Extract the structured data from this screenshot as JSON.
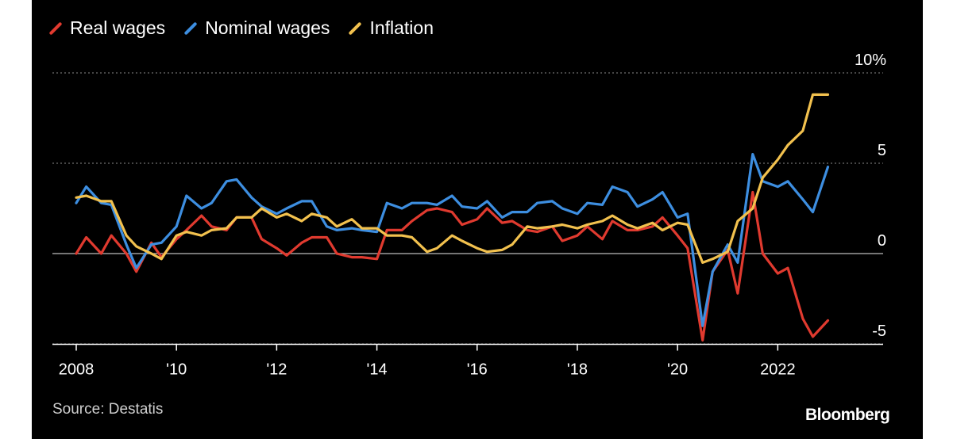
{
  "chart_data": {
    "type": "line",
    "title": "",
    "xlabel": "",
    "ylabel": "",
    "ylim": [
      -5,
      10
    ],
    "xlim": [
      2008,
      2023.5
    ],
    "grid": true,
    "legend_position": "top-left",
    "x_ticks": [
      {
        "value": 2008,
        "label": "2008"
      },
      {
        "value": 2010,
        "label": "'10"
      },
      {
        "value": 2012,
        "label": "'12"
      },
      {
        "value": 2014,
        "label": "'14"
      },
      {
        "value": 2016,
        "label": "'16"
      },
      {
        "value": 2018,
        "label": "'18"
      },
      {
        "value": 2020,
        "label": "'20"
      },
      {
        "value": 2022,
        "label": "2022"
      }
    ],
    "y_ticks": [
      {
        "value": 10,
        "label": "10%"
      },
      {
        "value": 5,
        "label": "5"
      },
      {
        "value": 0,
        "label": "0"
      },
      {
        "value": -5,
        "label": "-5"
      }
    ],
    "series": [
      {
        "name": "Real wages",
        "color": "#e03a2f",
        "points": [
          [
            2008.0,
            0.0
          ],
          [
            2008.2,
            0.9
          ],
          [
            2008.5,
            0.0
          ],
          [
            2008.7,
            1.0
          ],
          [
            2009.0,
            0.0
          ],
          [
            2009.2,
            -1.0
          ],
          [
            2009.5,
            0.6
          ],
          [
            2009.7,
            -0.2
          ],
          [
            2010.0,
            0.8
          ],
          [
            2010.2,
            1.3
          ],
          [
            2010.5,
            2.1
          ],
          [
            2010.7,
            1.5
          ],
          [
            2011.0,
            1.3
          ],
          [
            2011.2,
            2.0
          ],
          [
            2011.5,
            2.0
          ],
          [
            2011.7,
            0.8
          ],
          [
            2012.0,
            0.3
          ],
          [
            2012.2,
            -0.1
          ],
          [
            2012.5,
            0.6
          ],
          [
            2012.7,
            0.9
          ],
          [
            2013.0,
            0.9
          ],
          [
            2013.2,
            0.0
          ],
          [
            2013.5,
            -0.2
          ],
          [
            2013.7,
            -0.2
          ],
          [
            2014.0,
            -0.3
          ],
          [
            2014.2,
            1.3
          ],
          [
            2014.5,
            1.3
          ],
          [
            2014.7,
            1.8
          ],
          [
            2015.0,
            2.4
          ],
          [
            2015.2,
            2.5
          ],
          [
            2015.5,
            2.3
          ],
          [
            2015.7,
            1.6
          ],
          [
            2016.0,
            1.9
          ],
          [
            2016.2,
            2.5
          ],
          [
            2016.5,
            1.7
          ],
          [
            2016.7,
            1.8
          ],
          [
            2017.0,
            1.3
          ],
          [
            2017.2,
            1.2
          ],
          [
            2017.5,
            1.5
          ],
          [
            2017.7,
            0.7
          ],
          [
            2018.0,
            1.0
          ],
          [
            2018.2,
            1.5
          ],
          [
            2018.5,
            0.8
          ],
          [
            2018.7,
            1.8
          ],
          [
            2019.0,
            1.3
          ],
          [
            2019.2,
            1.3
          ],
          [
            2019.5,
            1.5
          ],
          [
            2019.7,
            2.0
          ],
          [
            2020.0,
            1.0
          ],
          [
            2020.2,
            0.3
          ],
          [
            2020.5,
            -4.8
          ],
          [
            2020.7,
            -1.0
          ],
          [
            2021.0,
            0.2
          ],
          [
            2021.2,
            -2.2
          ],
          [
            2021.5,
            3.4
          ],
          [
            2021.7,
            0.0
          ],
          [
            2022.0,
            -1.1
          ],
          [
            2022.2,
            -0.8
          ],
          [
            2022.5,
            -3.6
          ],
          [
            2022.7,
            -4.6
          ],
          [
            2023.0,
            -3.7
          ]
        ]
      },
      {
        "name": "Nominal wages",
        "color": "#3d8ee0",
        "points": [
          [
            2008.0,
            2.8
          ],
          [
            2008.2,
            3.7
          ],
          [
            2008.5,
            2.8
          ],
          [
            2008.7,
            2.7
          ],
          [
            2009.0,
            0.5
          ],
          [
            2009.2,
            -0.8
          ],
          [
            2009.5,
            0.5
          ],
          [
            2009.7,
            0.6
          ],
          [
            2010.0,
            1.5
          ],
          [
            2010.2,
            3.2
          ],
          [
            2010.5,
            2.5
          ],
          [
            2010.7,
            2.8
          ],
          [
            2011.0,
            4.0
          ],
          [
            2011.2,
            4.1
          ],
          [
            2011.5,
            3.1
          ],
          [
            2011.7,
            2.6
          ],
          [
            2012.0,
            2.2
          ],
          [
            2012.2,
            2.5
          ],
          [
            2012.5,
            2.9
          ],
          [
            2012.7,
            2.9
          ],
          [
            2013.0,
            1.5
          ],
          [
            2013.2,
            1.3
          ],
          [
            2013.5,
            1.4
          ],
          [
            2013.7,
            1.3
          ],
          [
            2014.0,
            1.2
          ],
          [
            2014.2,
            2.8
          ],
          [
            2014.5,
            2.5
          ],
          [
            2014.7,
            2.8
          ],
          [
            2015.0,
            2.8
          ],
          [
            2015.2,
            2.7
          ],
          [
            2015.5,
            3.2
          ],
          [
            2015.7,
            2.6
          ],
          [
            2016.0,
            2.5
          ],
          [
            2016.2,
            2.9
          ],
          [
            2016.5,
            2.0
          ],
          [
            2016.7,
            2.3
          ],
          [
            2017.0,
            2.3
          ],
          [
            2017.2,
            2.8
          ],
          [
            2017.5,
            2.9
          ],
          [
            2017.7,
            2.5
          ],
          [
            2018.0,
            2.2
          ],
          [
            2018.2,
            2.8
          ],
          [
            2018.5,
            2.7
          ],
          [
            2018.7,
            3.7
          ],
          [
            2019.0,
            3.4
          ],
          [
            2019.2,
            2.6
          ],
          [
            2019.5,
            3.0
          ],
          [
            2019.7,
            3.4
          ],
          [
            2020.0,
            2.0
          ],
          [
            2020.2,
            2.2
          ],
          [
            2020.5,
            -4.0
          ],
          [
            2020.7,
            -1.0
          ],
          [
            2021.0,
            0.5
          ],
          [
            2021.2,
            -0.5
          ],
          [
            2021.5,
            5.5
          ],
          [
            2021.7,
            4.0
          ],
          [
            2022.0,
            3.7
          ],
          [
            2022.2,
            4.0
          ],
          [
            2022.5,
            3.0
          ],
          [
            2022.7,
            2.3
          ],
          [
            2023.0,
            4.8
          ]
        ]
      },
      {
        "name": "Inflation",
        "color": "#f2c14e",
        "points": [
          [
            2008.0,
            3.1
          ],
          [
            2008.2,
            3.2
          ],
          [
            2008.5,
            2.9
          ],
          [
            2008.7,
            2.9
          ],
          [
            2009.0,
            1.0
          ],
          [
            2009.2,
            0.4
          ],
          [
            2009.5,
            0.0
          ],
          [
            2009.7,
            -0.3
          ],
          [
            2010.0,
            1.0
          ],
          [
            2010.2,
            1.2
          ],
          [
            2010.5,
            1.0
          ],
          [
            2010.7,
            1.3
          ],
          [
            2011.0,
            1.4
          ],
          [
            2011.2,
            2.0
          ],
          [
            2011.5,
            2.0
          ],
          [
            2011.7,
            2.5
          ],
          [
            2012.0,
            2.0
          ],
          [
            2012.2,
            2.2
          ],
          [
            2012.5,
            1.8
          ],
          [
            2012.7,
            2.2
          ],
          [
            2013.0,
            2.0
          ],
          [
            2013.2,
            1.5
          ],
          [
            2013.5,
            1.9
          ],
          [
            2013.7,
            1.4
          ],
          [
            2014.0,
            1.4
          ],
          [
            2014.2,
            1.0
          ],
          [
            2014.5,
            1.0
          ],
          [
            2014.7,
            0.9
          ],
          [
            2015.0,
            0.1
          ],
          [
            2015.2,
            0.3
          ],
          [
            2015.5,
            1.0
          ],
          [
            2015.7,
            0.7
          ],
          [
            2016.0,
            0.3
          ],
          [
            2016.2,
            0.1
          ],
          [
            2016.5,
            0.2
          ],
          [
            2016.7,
            0.5
          ],
          [
            2017.0,
            1.5
          ],
          [
            2017.2,
            1.4
          ],
          [
            2017.5,
            1.5
          ],
          [
            2017.7,
            1.6
          ],
          [
            2018.0,
            1.4
          ],
          [
            2018.2,
            1.6
          ],
          [
            2018.5,
            1.8
          ],
          [
            2018.7,
            2.1
          ],
          [
            2019.0,
            1.6
          ],
          [
            2019.2,
            1.4
          ],
          [
            2019.5,
            1.7
          ],
          [
            2019.7,
            1.3
          ],
          [
            2020.0,
            1.7
          ],
          [
            2020.2,
            1.6
          ],
          [
            2020.5,
            -0.5
          ],
          [
            2020.7,
            -0.3
          ],
          [
            2021.0,
            0.1
          ],
          [
            2021.2,
            1.8
          ],
          [
            2021.5,
            2.5
          ],
          [
            2021.7,
            4.2
          ],
          [
            2022.0,
            5.2
          ],
          [
            2022.2,
            6.0
          ],
          [
            2022.5,
            6.8
          ],
          [
            2022.7,
            8.8
          ],
          [
            2023.0,
            8.8
          ]
        ]
      }
    ]
  },
  "source": "Source: Destatis",
  "brand": "Bloomberg",
  "colors": {
    "background": "#000000",
    "grid": "#8a8a8a",
    "text": "#ffffff"
  }
}
